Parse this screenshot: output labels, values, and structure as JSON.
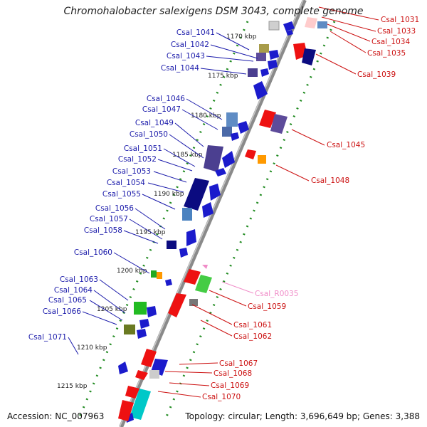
{
  "title": "Chromohalobacter salexigens DSM 3043, complete genome",
  "footer": {
    "accession": "Accession: NC_007963",
    "topology": "Topology: circular; Length: 3,696,649 bp; Genes: 3,388"
  },
  "colors": {
    "backbone": "#8a8a8a",
    "ruler_dots": "#1f8a1f",
    "left_labels": "#1a1aaa",
    "right_labels": "#cc1111",
    "rna_label": "#f08cc8"
  },
  "ticks": [
    "1170 kbp",
    "1175 kbp",
    "1180 kbp",
    "1185 kbp",
    "1190 kbp",
    "1195 kbp",
    "1200 kbp",
    "1205 kbp",
    "1210 kbp",
    "1215 kbp"
  ],
  "left_genes": [
    "Csal_1041",
    "Csal_1042",
    "Csal_1043",
    "Csal_1044",
    "Csal_1046",
    "Csal_1047",
    "Csal_1049",
    "Csal_1050",
    "Csal_1051",
    "Csal_1052",
    "Csal_1053",
    "Csal_1054",
    "Csal_1055",
    "Csal_1056",
    "Csal_1057",
    "Csal_1058",
    "Csal_1060",
    "Csal_1063",
    "Csal_1064",
    "Csal_1065",
    "Csal_1066",
    "Csal_1071"
  ],
  "right_genes": [
    "Csal_1031",
    "Csal_1033",
    "Csal_1034",
    "Csal_1035",
    "Csal_1039",
    "Csal_1045",
    "Csal_1048",
    "Csal_R0035",
    "Csal_1059",
    "Csal_1061",
    "Csal_1062",
    "Csal_1067",
    "Csal_1068",
    "Csal_1069",
    "Csal_1070"
  ]
}
